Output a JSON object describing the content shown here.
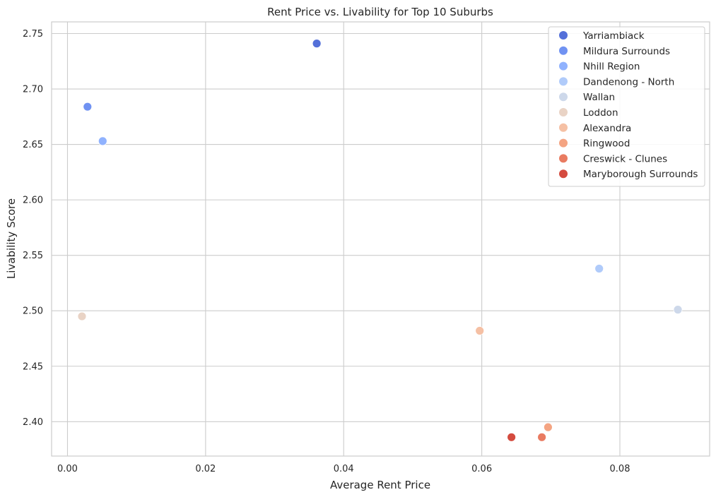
{
  "chart_data": {
    "type": "scatter",
    "title": "Rent Price vs. Livability for Top 10 Suburbs",
    "xlabel": "Average Rent Price",
    "ylabel": "Livability Score",
    "xlim": [
      -0.0023,
      0.093
    ],
    "ylim": [
      2.369,
      2.7605
    ],
    "xticks": [
      0.0,
      0.02,
      0.04,
      0.06,
      0.08
    ],
    "xtick_labels": [
      "0.00",
      "0.02",
      "0.04",
      "0.06",
      "0.08"
    ],
    "yticks": [
      2.4,
      2.45,
      2.5,
      2.55,
      2.6,
      2.65,
      2.7,
      2.75
    ],
    "ytick_labels": [
      "2.40",
      "2.45",
      "2.50",
      "2.55",
      "2.60",
      "2.65",
      "2.70",
      "2.75"
    ],
    "grid": true,
    "legend_position": "top-right",
    "series": [
      {
        "name": "Yarriambiack",
        "color": "#5470d9",
        "points": [
          {
            "x": 0.0361,
            "y": 2.741
          }
        ]
      },
      {
        "name": "Mildura Surrounds",
        "color": "#7092f2",
        "points": [
          {
            "x": 0.0029,
            "y": 2.684
          }
        ]
      },
      {
        "name": "Nhill Region",
        "color": "#90b2fe",
        "points": [
          {
            "x": 0.0051,
            "y": 2.653
          }
        ]
      },
      {
        "name": "Dandenong - North",
        "color": "#b0cbfa",
        "points": [
          {
            "x": 0.077,
            "y": 2.538
          }
        ]
      },
      {
        "name": "Wallan",
        "color": "#cdd8ea",
        "points": [
          {
            "x": 0.0884,
            "y": 2.501
          }
        ]
      },
      {
        "name": "Loddon",
        "color": "#e9d3c5",
        "points": [
          {
            "x": 0.0021,
            "y": 2.495
          }
        ]
      },
      {
        "name": "Alexandra",
        "color": "#f5c0a4",
        "points": [
          {
            "x": 0.0597,
            "y": 2.482
          }
        ]
      },
      {
        "name": "Ringwood",
        "color": "#f4a482",
        "points": [
          {
            "x": 0.0696,
            "y": 2.395
          }
        ]
      },
      {
        "name": "Creswick - Clunes",
        "color": "#e97b61",
        "points": [
          {
            "x": 0.0687,
            "y": 2.386
          }
        ]
      },
      {
        "name": "Maryborough Surrounds",
        "color": "#d44b3f",
        "points": [
          {
            "x": 0.0643,
            "y": 2.386
          }
        ]
      }
    ]
  }
}
